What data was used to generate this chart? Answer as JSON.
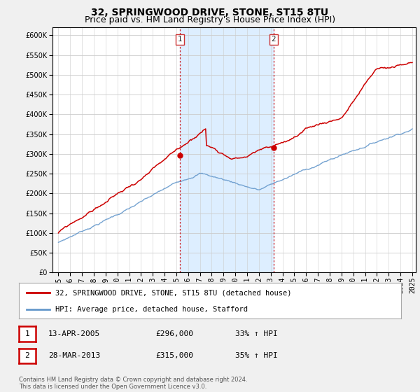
{
  "title": "32, SPRINGWOOD DRIVE, STONE, ST15 8TU",
  "subtitle": "Price paid vs. HM Land Registry's House Price Index (HPI)",
  "ylim": [
    0,
    620000
  ],
  "yticks": [
    0,
    50000,
    100000,
    150000,
    200000,
    250000,
    300000,
    350000,
    400000,
    450000,
    500000,
    550000,
    600000
  ],
  "hpi_color": "#6699cc",
  "price_color": "#cc0000",
  "vline_color": "#cc0000",
  "background_color": "#f0f0f0",
  "plot_bg_color": "#ffffff",
  "shade_color": "#ddeeff",
  "sale1_year": 2005.28,
  "sale1_y": 296000,
  "sale2_year": 2013.24,
  "sale2_y": 315000,
  "xmin": 1995,
  "xmax": 2025,
  "legend_label_price": "32, SPRINGWOOD DRIVE, STONE, ST15 8TU (detached house)",
  "legend_label_hpi": "HPI: Average price, detached house, Stafford",
  "table_row1": [
    "1",
    "13-APR-2005",
    "£296,000",
    "33% ↑ HPI"
  ],
  "table_row2": [
    "2",
    "28-MAR-2013",
    "£315,000",
    "35% ↑ HPI"
  ],
  "footer": "Contains HM Land Registry data © Crown copyright and database right 2024.\nThis data is licensed under the Open Government Licence v3.0.",
  "title_fontsize": 10,
  "subtitle_fontsize": 9,
  "tick_fontsize": 7,
  "legend_fontsize": 7.5,
  "table_fontsize": 8,
  "footer_fontsize": 6
}
